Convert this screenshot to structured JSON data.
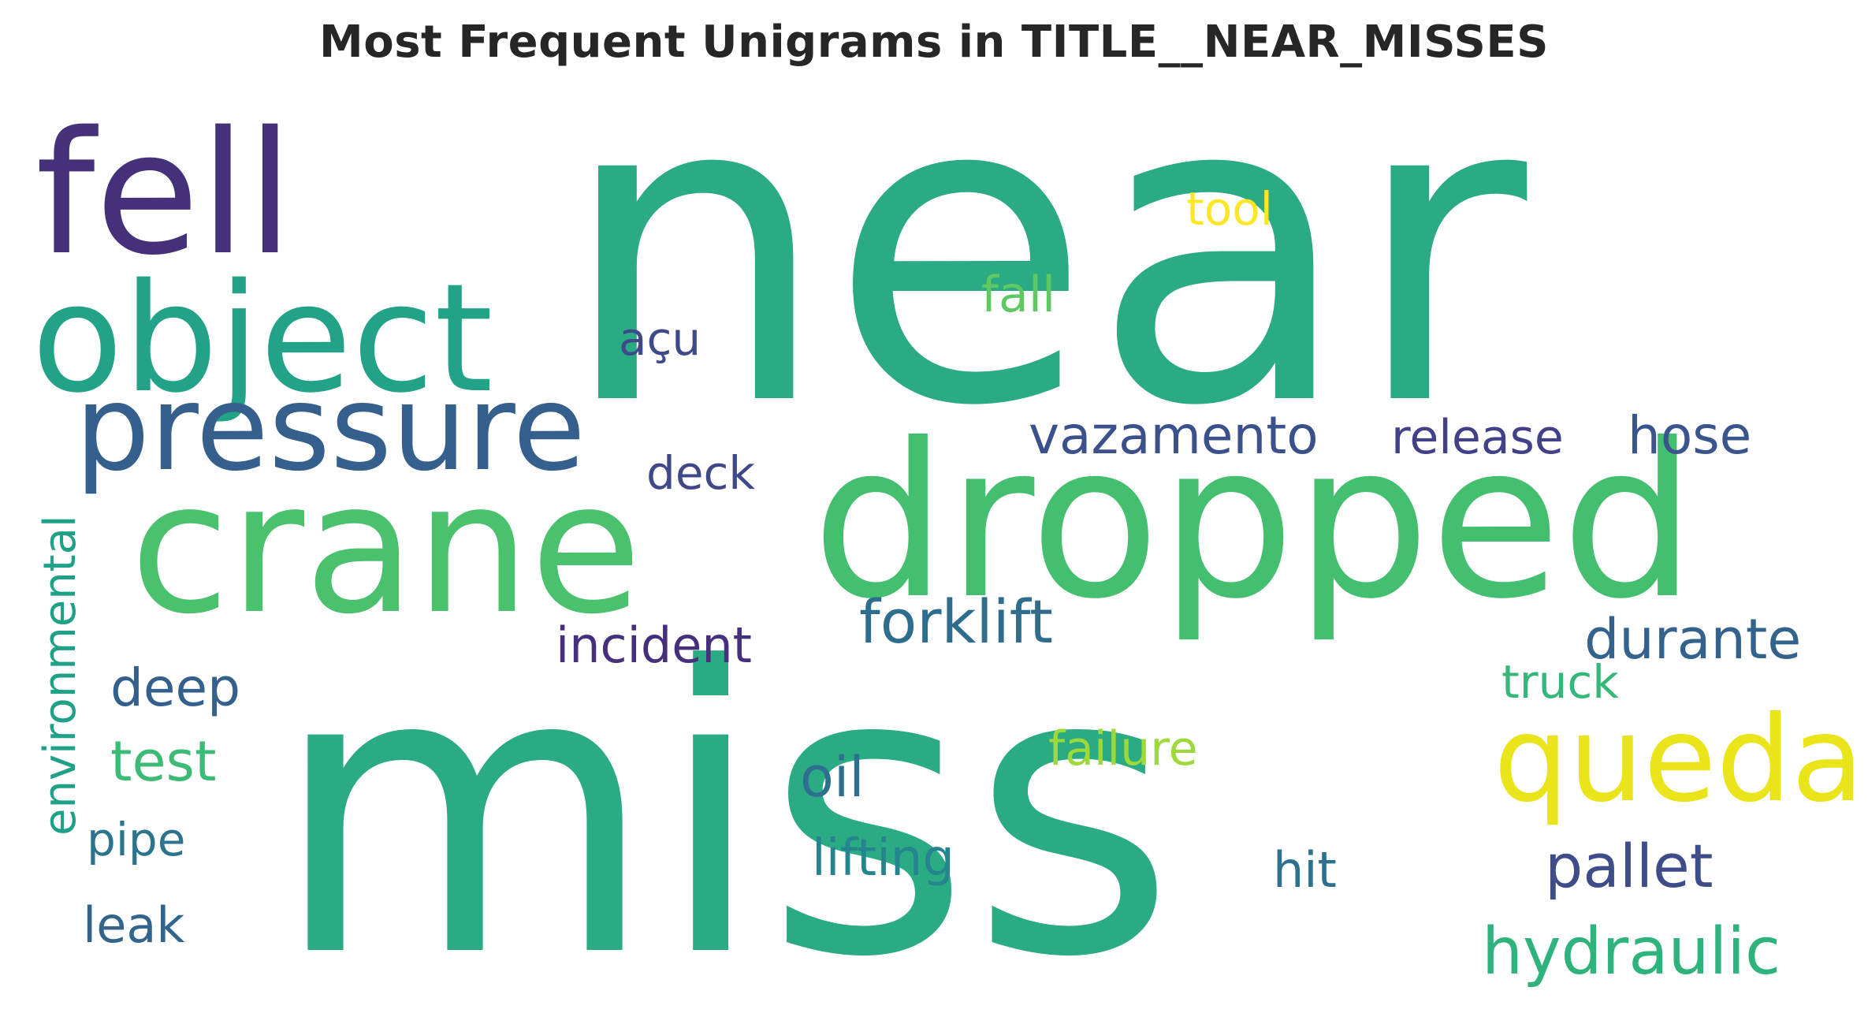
{
  "chart_data": {
    "type": "wordcloud",
    "title": "Most Frequent Unigrams in TITLE__NEAR_MISSES",
    "words": [
      {
        "text": "near",
        "color": "#2aab84",
        "weight": 100
      },
      {
        "text": "miss",
        "color": "#2aab84",
        "weight": 98
      },
      {
        "text": "dropped",
        "color": "#44bf70",
        "weight": 60
      },
      {
        "text": "crane",
        "color": "#49c16d",
        "weight": 52
      },
      {
        "text": "fell",
        "color": "#45307a",
        "weight": 48
      },
      {
        "text": "object",
        "color": "#22a387",
        "weight": 45
      },
      {
        "text": "pressure",
        "color": "#355f8d",
        "weight": 38
      },
      {
        "text": "queda",
        "color": "#eae51a",
        "weight": 33
      },
      {
        "text": "hydraulic",
        "color": "#2eb37c",
        "weight": 19
      },
      {
        "text": "pallet",
        "color": "#3e4c8a",
        "weight": 18
      },
      {
        "text": "forklift",
        "color": "#2f6d8e",
        "weight": 18
      },
      {
        "text": "durante",
        "color": "#33638d",
        "weight": 17
      },
      {
        "text": "vazamento",
        "color": "#3b518b",
        "weight": 16
      },
      {
        "text": "hose",
        "color": "#3a548c",
        "weight": 16
      },
      {
        "text": "release",
        "color": "#424086",
        "weight": 15
      },
      {
        "text": "test",
        "color": "#3bbb75",
        "weight": 15
      },
      {
        "text": "deep",
        "color": "#34608d",
        "weight": 15
      },
      {
        "text": "oil",
        "color": "#2e6e8e",
        "weight": 15
      },
      {
        "text": "incident",
        "color": "#46307e",
        "weight": 15
      },
      {
        "text": "failure",
        "color": "#9dd93b",
        "weight": 14
      },
      {
        "text": "leak",
        "color": "#32658e",
        "weight": 14
      },
      {
        "text": "lifting",
        "color": "#25858e",
        "weight": 14
      },
      {
        "text": "hit",
        "color": "#2d718e",
        "weight": 14
      },
      {
        "text": "environmental",
        "color": "#1fa187",
        "weight": 14
      },
      {
        "text": "deck",
        "color": "#3f4889",
        "weight": 14
      },
      {
        "text": "pipe",
        "color": "#2c738e",
        "weight": 14
      },
      {
        "text": "truck",
        "color": "#35b779",
        "weight": 14
      },
      {
        "text": "fall",
        "color": "#5ec962",
        "weight": 14
      },
      {
        "text": "tool",
        "color": "#fde725",
        "weight": 13
      },
      {
        "text": "açu",
        "color": "#3e4a89",
        "weight": 13
      }
    ]
  }
}
